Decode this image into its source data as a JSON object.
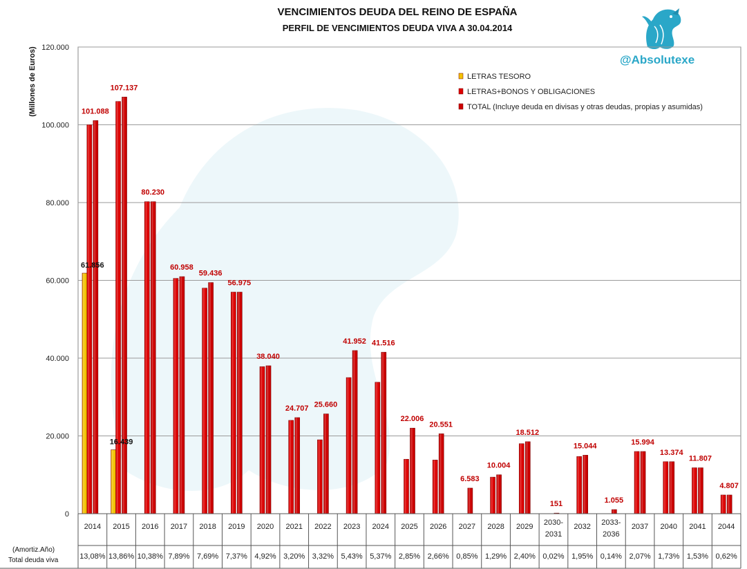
{
  "chart_data": {
    "type": "bar",
    "title": "VENCIMIENTOS DEUDA DEL REINO DE ESPAÑA",
    "subtitle": "PERFIL DE VENCIMIENTOS DEUDA VIVA A 30.04.2014",
    "ylabel": "(Millones de Euros)",
    "ylim": [
      0,
      120000
    ],
    "yticks": [
      "0",
      "20.000",
      "40.000",
      "60.000",
      "80.000",
      "100.000",
      "120.000"
    ],
    "grid": true,
    "legend_position": "top-right",
    "categories": [
      "2014",
      "2015",
      "2016",
      "2017",
      "2018",
      "2019",
      "2020",
      "2021",
      "2022",
      "2023",
      "2024",
      "2025",
      "2026",
      "2027",
      "2028",
      "2029",
      "2030-2031",
      "2032",
      "2033-2036",
      "2037",
      "2040",
      "2041",
      "2044"
    ],
    "series": [
      {
        "name": "LETRAS TESORO",
        "color": "#f2c200",
        "values": [
          61856,
          16439,
          null,
          null,
          null,
          null,
          null,
          null,
          null,
          null,
          null,
          null,
          null,
          null,
          null,
          null,
          null,
          null,
          null,
          null,
          null,
          null,
          null
        ],
        "labels": [
          "61.856",
          "16.439",
          "",
          "",
          "",
          "",
          "",
          "",
          "",
          "",
          "",
          "",
          "",
          "",
          "",
          "",
          "",
          "",
          "",
          "",
          "",
          "",
          ""
        ]
      },
      {
        "name": "LETRAS+BONOS Y OBLIGACIONES",
        "color": "#dd0000",
        "values": [
          100000,
          106000,
          80230,
          60500,
          58000,
          56975,
          37800,
          24000,
          19000,
          35000,
          33800,
          14000,
          13800,
          null,
          9400,
          18000,
          null,
          14700,
          null,
          15994,
          13374,
          11807,
          4807
        ]
      },
      {
        "name": "TOTAL (Incluye deuda en divisas y otras deudas, propias y asumidas)",
        "color": "#cc0000",
        "values": [
          101088,
          107137,
          80230,
          60958,
          59436,
          56975,
          38040,
          24707,
          25660,
          41952,
          41516,
          22006,
          20551,
          6583,
          10004,
          18512,
          151,
          15044,
          1055,
          15994,
          13374,
          11807,
          4807
        ],
        "labels": [
          "101.088",
          "107.137",
          "80.230",
          "60.958",
          "59.436",
          "56.975",
          "38.040",
          "24.707",
          "25.660",
          "41.952",
          "41.516",
          "22.006",
          "20.551",
          "6.583",
          "10.004",
          "18.512",
          "151",
          "15.044",
          "1.055",
          "15.994",
          "13.374",
          "11.807",
          "4.807"
        ]
      }
    ],
    "row_label_1": "(Amortiz.Año)",
    "row_label_2": "Total deuda viva",
    "percentages": [
      "13,08%",
      "13,86%",
      "10,38%",
      "7,89%",
      "7,69%",
      "7,37%",
      "4,92%",
      "3,20%",
      "3,32%",
      "5,43%",
      "5,37%",
      "2,85%",
      "2,66%",
      "0,85%",
      "1,29%",
      "2,40%",
      "0,02%",
      "1,95%",
      "0,14%",
      "2,07%",
      "1,73%",
      "1,53%",
      "0,62%"
    ],
    "label_color": "#c00000"
  },
  "watermark_handle": "@Absolutexe"
}
